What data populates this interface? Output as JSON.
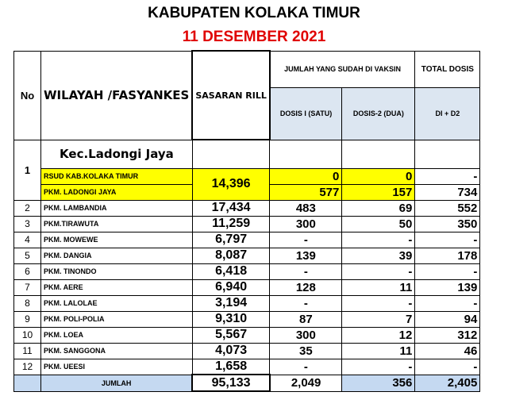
{
  "title": "KABUPATEN KOLAKA TIMUR",
  "date": "11 DESEMBER 2021",
  "headers": {
    "no": "No",
    "wilayah": "WILAYAH /FASYANKES",
    "sasaran": "SASARAN RILL",
    "jumlah": "JUMLAH YANG SUDAH DI VAKSIN",
    "total": "TOTAL DOSIS",
    "dosis1": "DOSIS I (SATU)",
    "dosis2": "DOSIS-2 (DUA)",
    "d1d2": "DI + D2"
  },
  "kec": "Kec.Ladongi Jaya",
  "group1": {
    "no": "1",
    "sasaran": "14,396",
    "rows": [
      {
        "name": "RSUD KAB.KOLAKA TIMUR",
        "d1": "0",
        "d2": "0",
        "total": "-"
      },
      {
        "name": "PKM. LADONGI JAYA",
        "d1": "577",
        "d2": "157",
        "total": "734"
      }
    ]
  },
  "rows": [
    {
      "no": "2",
      "name": "PKM. LAMBANDIA",
      "sasaran": "17,434",
      "d1": "483",
      "d2": "69",
      "total": "552"
    },
    {
      "no": "3",
      "name": "PKM.TIRAWUTA",
      "sasaran": "11,259",
      "d1": "300",
      "d2": "50",
      "total": "350"
    },
    {
      "no": "4",
      "name": "PKM. MOWEWE",
      "sasaran": "6,797",
      "d1": "-",
      "d2": "-",
      "total": "-"
    },
    {
      "no": "5",
      "name": "PKM. DANGIA",
      "sasaran": "8,087",
      "d1": "139",
      "d2": "39",
      "total": "178"
    },
    {
      "no": "6",
      "name": "PKM. TINONDO",
      "sasaran": "6,418",
      "d1": "-",
      "d2": "-",
      "total": "-"
    },
    {
      "no": "7",
      "name": "PKM. AERE",
      "sasaran": "6,940",
      "d1": "128",
      "d2": "11",
      "total": "139"
    },
    {
      "no": "8",
      "name": "PKM. LALOLAE",
      "sasaran": "3,194",
      "d1": "-",
      "d2": "-",
      "total": "-"
    },
    {
      "no": "9",
      "name": "PKM. POLI-POLIA",
      "sasaran": "9,310",
      "d1": "87",
      "d2": "7",
      "total": "94"
    },
    {
      "no": "10",
      "name": "PKM. LOEA",
      "sasaran": "5,567",
      "d1": "300",
      "d2": "12",
      "total": "312"
    },
    {
      "no": "11",
      "name": "PKM. SANGGONA",
      "sasaran": "4,073",
      "d1": "35",
      "d2": "11",
      "total": "46"
    },
    {
      "no": "12",
      "name": "PKM. UEESI",
      "sasaran": "1,658",
      "d1": "-",
      "d2": "-",
      "total": "-"
    }
  ],
  "jumlah": {
    "label": "JUMLAH",
    "sasaran": "95,133",
    "d1": "2,049",
    "d2": "356",
    "total": "2,405"
  },
  "colors": {
    "highlight": "#ffff00",
    "date": "#e00000",
    "footer": "#c5d9f1"
  }
}
